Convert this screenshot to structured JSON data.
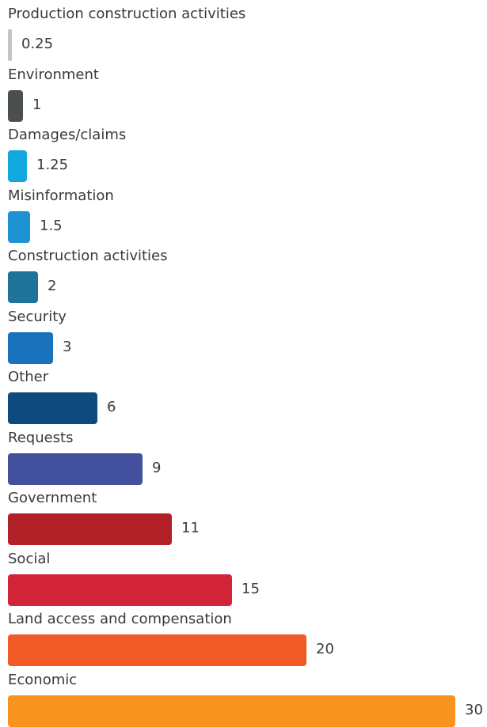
{
  "chart_data": {
    "type": "bar",
    "orientation": "horizontal",
    "categories": [
      "Production construction activities",
      "Environment",
      "Damages/claims",
      "Misinformation",
      "Construction activities",
      "Security",
      "Other",
      "Requests",
      "Government",
      "Social",
      "Land access and compensation",
      "Economic"
    ],
    "values": [
      0.25,
      1,
      1.25,
      1.5,
      2,
      3,
      6,
      9,
      11,
      15,
      20,
      30
    ],
    "value_labels": [
      "0.25",
      "1",
      "1.25",
      "1.5",
      "2",
      "3",
      "6",
      "9",
      "11",
      "15",
      "20",
      "30"
    ],
    "colors": [
      "#c4c4c4",
      "#4b4f4f",
      "#13a7df",
      "#1d93d3",
      "#1f7299",
      "#1972bb",
      "#0e4a7e",
      "#43509d",
      "#b22128",
      "#d22439",
      "#f15a25",
      "#f7931e"
    ],
    "xlim": [
      0,
      30
    ],
    "legend": "none",
    "grid": false
  }
}
